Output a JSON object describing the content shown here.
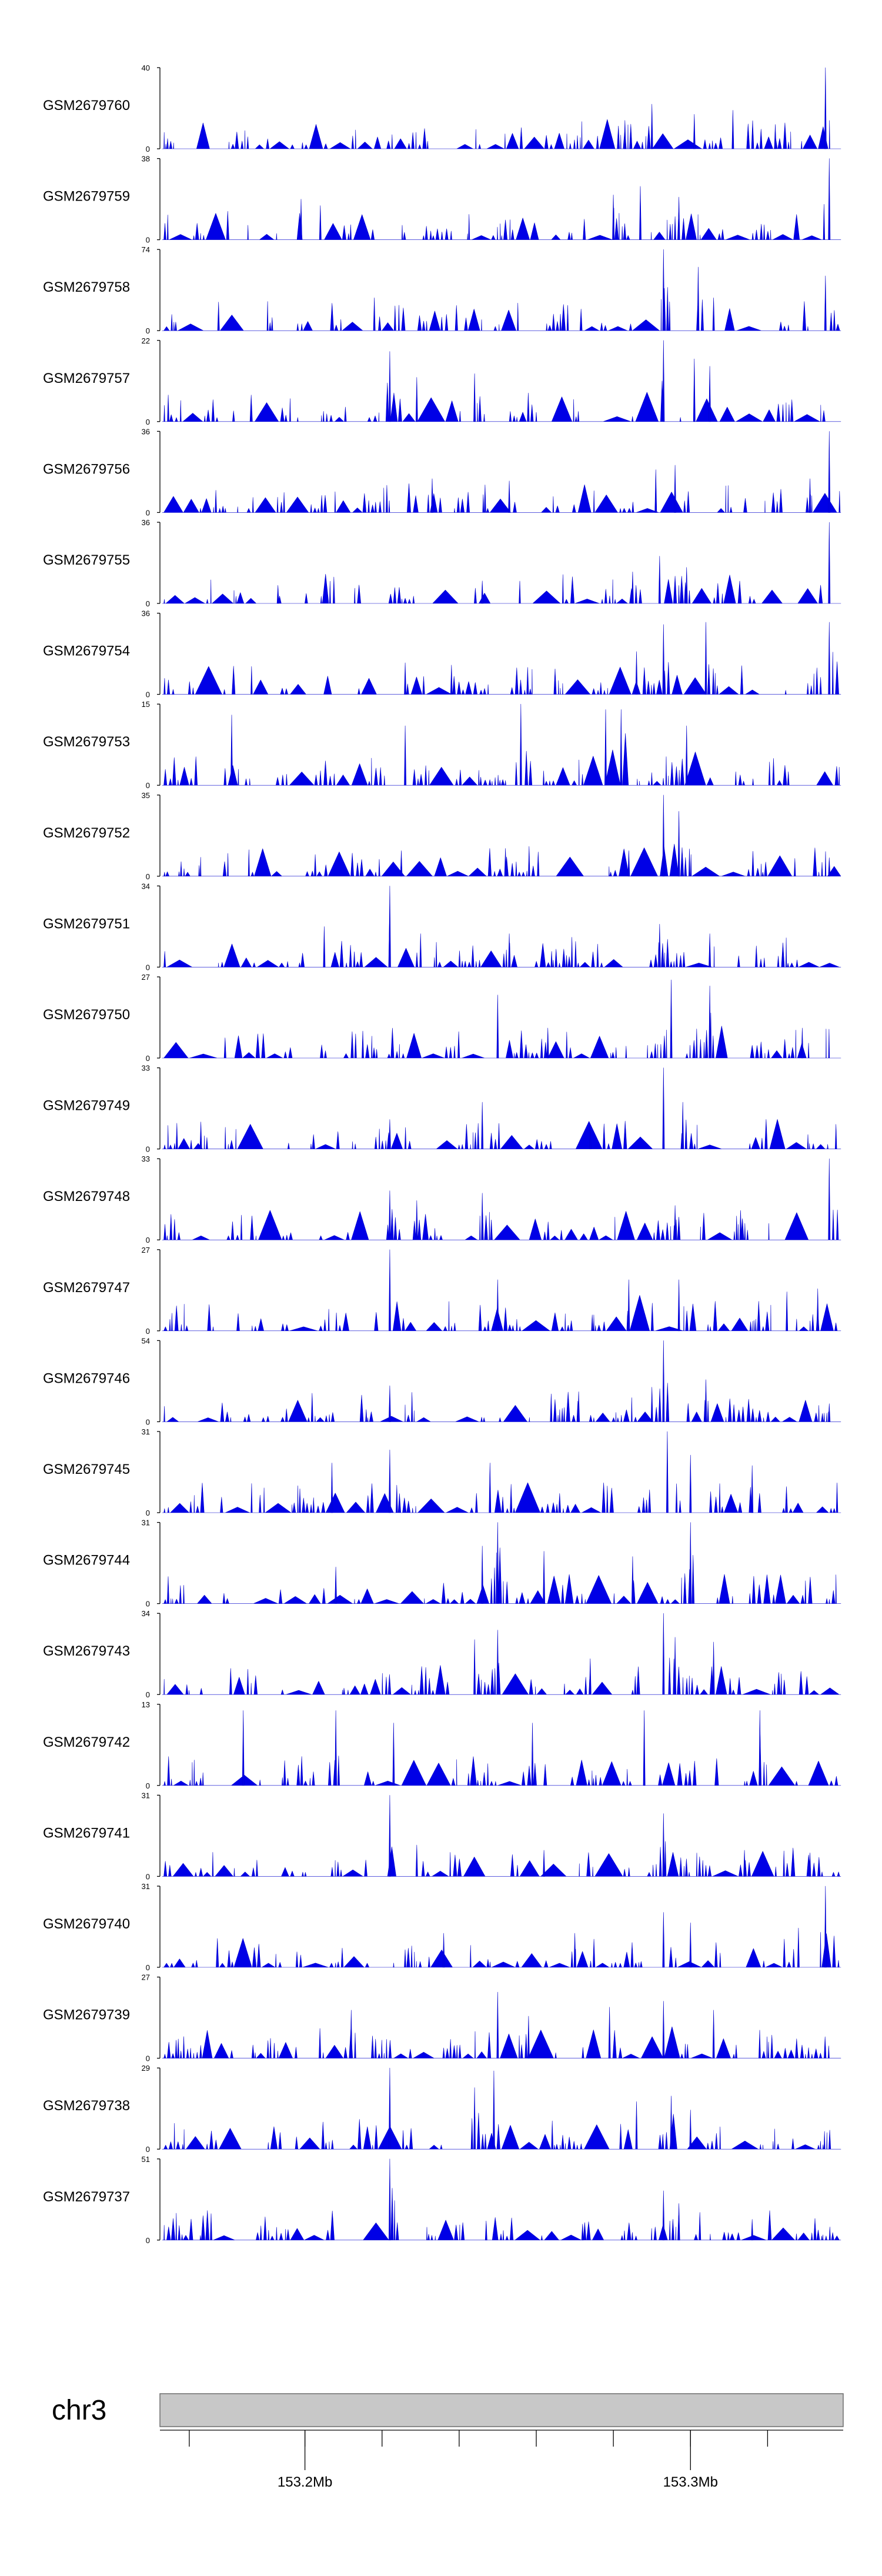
{
  "chart_data": {
    "type": "area",
    "title": "",
    "xlabel": "",
    "ylabel": "",
    "xlim": [
      153.163,
      153.339
    ],
    "chromosome": "chr3",
    "x_ticks": [
      {
        "value": 153.2,
        "label": "153.2Mb"
      },
      {
        "value": 153.3,
        "label": "153.3Mb"
      }
    ],
    "x_minor_ticks": [
      153.17,
      153.2,
      153.22,
      153.24,
      153.26,
      153.28,
      153.3,
      153.32
    ],
    "grid": false,
    "legend": "none",
    "color": "#0000e6",
    "peak_anchors_note": "",
    "tracks": [
      {
        "name": "GSM2679760",
        "ymax": 40,
        "ymin": 0,
        "seed": 11,
        "peaks": [
          [
            153.29,
            22
          ],
          [
            153.311,
            19
          ],
          [
            153.283,
            14
          ],
          [
            153.335,
            40
          ],
          [
            153.301,
            17
          ],
          [
            153.322,
            12
          ]
        ]
      },
      {
        "name": "GSM2679759",
        "ymax": 38,
        "ymin": 0,
        "seed": 23,
        "peaks": [
          [
            153.199,
            19
          ],
          [
            153.204,
            16
          ],
          [
            153.28,
            21
          ],
          [
            153.287,
            25
          ],
          [
            153.297,
            20
          ],
          [
            153.336,
            38
          ]
        ]
      },
      {
        "name": "GSM2679758",
        "ymax": 74,
        "ymin": 0,
        "seed": 37,
        "peaks": [
          [
            153.218,
            30
          ],
          [
            153.293,
            74
          ],
          [
            153.302,
            58
          ],
          [
            153.306,
            30
          ],
          [
            153.335,
            50
          ]
        ]
      },
      {
        "name": "GSM2679757",
        "ymax": 22,
        "ymin": 0,
        "seed": 41,
        "peaks": [
          [
            153.222,
            19
          ],
          [
            153.229,
            12
          ],
          [
            153.244,
            13
          ],
          [
            153.293,
            22
          ],
          [
            153.301,
            17
          ],
          [
            153.305,
            15
          ]
        ]
      },
      {
        "name": "GSM2679756",
        "ymax": 36,
        "ymin": 0,
        "seed": 53,
        "peaks": [
          [
            153.233,
            15
          ],
          [
            153.253,
            14
          ],
          [
            153.291,
            19
          ],
          [
            153.296,
            21
          ],
          [
            153.331,
            15
          ],
          [
            153.336,
            36
          ]
        ]
      },
      {
        "name": "GSM2679755",
        "ymax": 36,
        "ymin": 0,
        "seed": 67,
        "peaks": [
          [
            153.193,
            8
          ],
          [
            153.246,
            10
          ],
          [
            153.285,
            14
          ],
          [
            153.292,
            21
          ],
          [
            153.299,
            16
          ],
          [
            153.336,
            36
          ]
        ]
      },
      {
        "name": "GSM2679754",
        "ymax": 36,
        "ymin": 0,
        "seed": 71,
        "peaks": [
          [
            153.226,
            14
          ],
          [
            153.238,
            13
          ],
          [
            153.286,
            19
          ],
          [
            153.293,
            31
          ],
          [
            153.304,
            32
          ],
          [
            153.336,
            32
          ]
        ]
      },
      {
        "name": "GSM2679753",
        "ymax": 15,
        "ymin": 0,
        "seed": 83,
        "peaks": [
          [
            153.181,
            13
          ],
          [
            153.226,
            11
          ],
          [
            153.256,
            15
          ],
          [
            153.278,
            14
          ],
          [
            153.282,
            14
          ],
          [
            153.299,
            11
          ]
        ]
      },
      {
        "name": "GSM2679752",
        "ymax": 35,
        "ymin": 0,
        "seed": 97,
        "peaks": [
          [
            153.225,
            11
          ],
          [
            153.252,
            12
          ],
          [
            153.284,
            11
          ],
          [
            153.293,
            35
          ],
          [
            153.297,
            28
          ],
          [
            153.336,
            8
          ]
        ]
      },
      {
        "name": "GSM2679751",
        "ymax": 34,
        "ymin": 0,
        "seed": 101,
        "peaks": [
          [
            153.205,
            17
          ],
          [
            153.222,
            34
          ],
          [
            153.23,
            14
          ],
          [
            153.253,
            14
          ],
          [
            153.292,
            18
          ],
          [
            153.305,
            14
          ]
        ]
      },
      {
        "name": "GSM2679750",
        "ymax": 27,
        "ymin": 0,
        "seed": 113,
        "peaks": [
          [
            153.215,
            9
          ],
          [
            153.25,
            21
          ],
          [
            153.263,
            10
          ],
          [
            153.295,
            26
          ],
          [
            153.305,
            24
          ],
          [
            153.329,
            10
          ]
        ]
      },
      {
        "name": "GSM2679749",
        "ymax": 33,
        "ymin": 0,
        "seed": 127,
        "peaks": [
          [
            153.173,
            11
          ],
          [
            153.222,
            12
          ],
          [
            153.246,
            19
          ],
          [
            153.274,
            10
          ],
          [
            153.293,
            33
          ],
          [
            153.298,
            19
          ]
        ]
      },
      {
        "name": "GSM2679748",
        "ymax": 33,
        "ymin": 0,
        "seed": 131,
        "peaks": [
          [
            153.222,
            20
          ],
          [
            153.229,
            16
          ],
          [
            153.246,
            19
          ],
          [
            153.296,
            14
          ],
          [
            153.313,
            12
          ],
          [
            153.336,
            33
          ]
        ]
      },
      {
        "name": "GSM2679747",
        "ymax": 27,
        "ymin": 0,
        "seed": 139,
        "peaks": [
          [
            153.222,
            27
          ],
          [
            153.25,
            17
          ],
          [
            153.284,
            17
          ],
          [
            153.297,
            17
          ],
          [
            153.325,
            13
          ],
          [
            153.333,
            14
          ]
        ]
      },
      {
        "name": "GSM2679746",
        "ymax": 54,
        "ymin": 0,
        "seed": 149,
        "peaks": [
          [
            153.222,
            24
          ],
          [
            153.271,
            20
          ],
          [
            153.29,
            23
          ],
          [
            153.293,
            54
          ],
          [
            153.304,
            28
          ],
          [
            153.336,
            12
          ]
        ]
      },
      {
        "name": "GSM2679745",
        "ymax": 31,
        "ymin": 0,
        "seed": 151,
        "peaks": [
          [
            153.207,
            19
          ],
          [
            153.222,
            24
          ],
          [
            153.248,
            19
          ],
          [
            153.294,
            31
          ],
          [
            153.3,
            22
          ],
          [
            153.316,
            18
          ]
        ]
      },
      {
        "name": "GSM2679744",
        "ymax": 31,
        "ymin": 0,
        "seed": 163,
        "peaks": [
          [
            153.208,
            14
          ],
          [
            153.246,
            22
          ],
          [
            153.25,
            31
          ],
          [
            153.262,
            20
          ],
          [
            153.285,
            18
          ],
          [
            153.3,
            31
          ]
        ]
      },
      {
        "name": "GSM2679743",
        "ymax": 34,
        "ymin": 0,
        "seed": 173,
        "peaks": [
          [
            153.244,
            23
          ],
          [
            153.25,
            27
          ],
          [
            153.274,
            15
          ],
          [
            153.293,
            34
          ],
          [
            153.296,
            24
          ],
          [
            153.306,
            22
          ]
        ]
      },
      {
        "name": "GSM2679742",
        "ymax": 13,
        "ymin": 0,
        "seed": 181,
        "peaks": [
          [
            153.184,
            12
          ],
          [
            153.208,
            12
          ],
          [
            153.223,
            10
          ],
          [
            153.259,
            10
          ],
          [
            153.288,
            12
          ],
          [
            153.318,
            12
          ]
        ]
      },
      {
        "name": "GSM2679741",
        "ymax": 31,
        "ymin": 0,
        "seed": 191,
        "peaks": [
          [
            153.222,
            31
          ],
          [
            153.229,
            12
          ],
          [
            153.262,
            10
          ],
          [
            153.293,
            24
          ],
          [
            153.314,
            10
          ],
          [
            153.331,
            9
          ]
        ]
      },
      {
        "name": "GSM2679740",
        "ymax": 31,
        "ymin": 0,
        "seed": 199,
        "peaks": [
          [
            153.236,
            13
          ],
          [
            153.27,
            13
          ],
          [
            153.293,
            21
          ],
          [
            153.3,
            17
          ],
          [
            153.328,
            15
          ],
          [
            153.335,
            31
          ]
        ]
      },
      {
        "name": "GSM2679739",
        "ymax": 27,
        "ymin": 0,
        "seed": 211,
        "peaks": [
          [
            153.212,
            16
          ],
          [
            153.25,
            22
          ],
          [
            153.258,
            14
          ],
          [
            153.279,
            17
          ],
          [
            153.293,
            19
          ],
          [
            153.306,
            16
          ]
        ]
      },
      {
        "name": "GSM2679738",
        "ymax": 29,
        "ymin": 0,
        "seed": 223,
        "peaks": [
          [
            153.222,
            29
          ],
          [
            153.244,
            22
          ],
          [
            153.249,
            28
          ],
          [
            153.286,
            17
          ],
          [
            153.295,
            19
          ],
          [
            153.3,
            14
          ]
        ]
      },
      {
        "name": "GSM2679737",
        "ymax": 51,
        "ymin": 0,
        "seed": 227,
        "peaks": [
          [
            153.222,
            51
          ],
          [
            153.247,
            12
          ],
          [
            153.272,
            10
          ],
          [
            153.293,
            31
          ],
          [
            153.297,
            23
          ],
          [
            153.316,
            13
          ]
        ]
      }
    ]
  }
}
